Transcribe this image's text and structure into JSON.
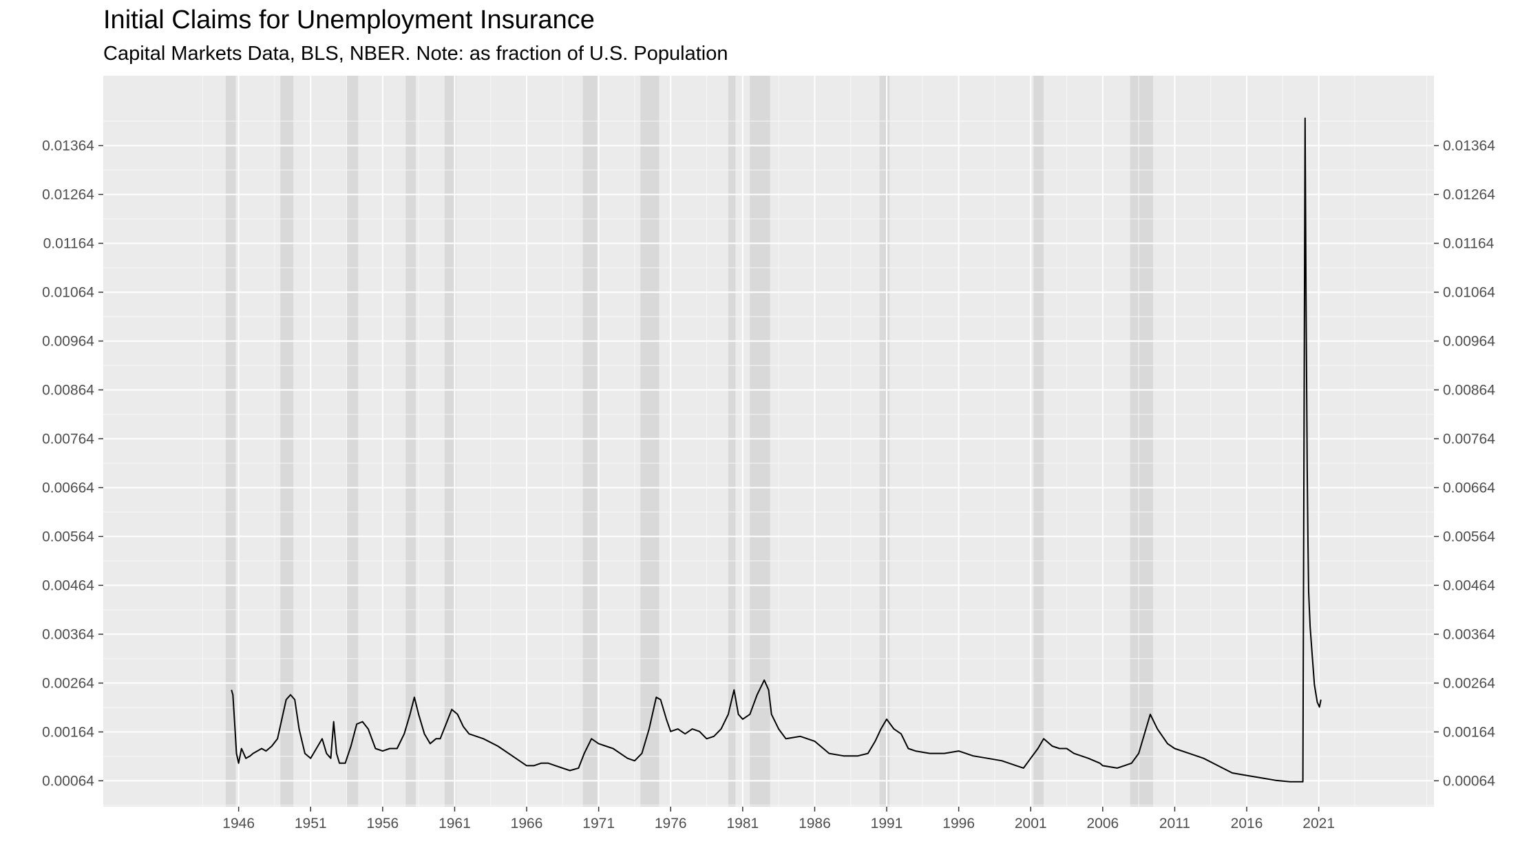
{
  "chart_data": {
    "type": "line",
    "title": "Initial Claims for Unemployment Insurance",
    "subtitle": "Capital Markets Data, BLS, NBER. Note: as fraction of U.S. Population",
    "xlabel": "",
    "ylabel": "",
    "xlim": [
      1936.6,
      2029.0
    ],
    "ylim": [
      0.00011,
      0.01507
    ],
    "x_ticks": [
      1946,
      1951,
      1956,
      1961,
      1966,
      1971,
      1976,
      1981,
      1986,
      1991,
      1996,
      2001,
      2006,
      2011,
      2016,
      2021
    ],
    "y_ticks": [
      0.00064,
      0.00164,
      0.00264,
      0.00364,
      0.00464,
      0.00564,
      0.00664,
      0.00764,
      0.00864,
      0.00964,
      0.01064,
      0.01164,
      0.01264,
      0.01364
    ],
    "y_tick_labels": [
      "0.00064",
      "0.00164",
      "0.00264",
      "0.00364",
      "0.00464",
      "0.00564",
      "0.00664",
      "0.00764",
      "0.00864",
      "0.00964",
      "0.01064",
      "0.01164",
      "0.01264",
      "0.01364"
    ],
    "secondary_y_axis": true,
    "grid": true,
    "recessions": [
      [
        1945.1,
        1945.8
      ],
      [
        1948.9,
        1949.8
      ],
      [
        1953.5,
        1954.3
      ],
      [
        1957.6,
        1958.3
      ],
      [
        1960.3,
        1961.1
      ],
      [
        1969.9,
        1970.9
      ],
      [
        1973.9,
        1975.2
      ],
      [
        1980.0,
        1980.5
      ],
      [
        1981.5,
        1982.9
      ],
      [
        1990.5,
        1991.2
      ],
      [
        2001.2,
        2001.9
      ],
      [
        2007.9,
        2009.5
      ]
    ],
    "series": [
      {
        "color": "#000000",
        "x": [
          1945.5,
          1945.6,
          1945.75,
          1945.85,
          1946.0,
          1946.2,
          1946.5,
          1946.8,
          1947.0,
          1947.3,
          1947.6,
          1947.9,
          1948.3,
          1948.7,
          1949.0,
          1949.3,
          1949.6,
          1949.9,
          1950.2,
          1950.6,
          1951.0,
          1951.4,
          1951.8,
          1952.1,
          1952.4,
          1952.6,
          1952.8,
          1953.0,
          1953.4,
          1953.8,
          1954.2,
          1954.6,
          1955.0,
          1955.5,
          1956.0,
          1956.5,
          1957.0,
          1957.5,
          1957.9,
          1958.2,
          1958.5,
          1958.9,
          1959.3,
          1959.7,
          1960.0,
          1960.4,
          1960.8,
          1961.2,
          1961.6,
          1962.0,
          1963.0,
          1964.0,
          1965.0,
          1966.0,
          1966.5,
          1967.0,
          1967.5,
          1968.0,
          1969.0,
          1969.6,
          1970.0,
          1970.5,
          1971.0,
          1971.5,
          1972.0,
          1972.5,
          1973.0,
          1973.5,
          1974.0,
          1974.5,
          1975.0,
          1975.3,
          1975.7,
          1976.0,
          1976.5,
          1977.0,
          1977.5,
          1978.0,
          1978.5,
          1979.0,
          1979.5,
          1980.0,
          1980.4,
          1980.7,
          1981.0,
          1981.5,
          1982.0,
          1982.5,
          1982.8,
          1983.0,
          1983.5,
          1984.0,
          1985.0,
          1986.0,
          1987.0,
          1988.0,
          1989.0,
          1989.7,
          1990.2,
          1990.6,
          1991.0,
          1991.5,
          1992.0,
          1992.5,
          1993.0,
          1994.0,
          1995.0,
          1996.0,
          1997.0,
          1998.0,
          1999.0,
          2000.0,
          2000.5,
          2001.0,
          2001.5,
          2001.9,
          2002.5,
          2003.0,
          2003.5,
          2004.0,
          2005.0,
          2005.8,
          2006.0,
          2007.0,
          2007.5,
          2008.0,
          2008.5,
          2009.0,
          2009.3,
          2009.8,
          2010.5,
          2011.0,
          2012.0,
          2013.0,
          2014.0,
          2015.0,
          2016.0,
          2017.0,
          2018.0,
          2019.0,
          2019.9,
          2020.05,
          2020.12,
          2020.2,
          2020.25,
          2020.3,
          2020.4,
          2020.55,
          2020.7,
          2020.9,
          2021.05,
          2021.15
        ],
        "values": [
          0.0025,
          0.0024,
          0.0017,
          0.0012,
          0.001,
          0.0013,
          0.0011,
          0.00115,
          0.0012,
          0.00125,
          0.0013,
          0.00125,
          0.00135,
          0.0015,
          0.0019,
          0.0023,
          0.0024,
          0.0023,
          0.0017,
          0.0012,
          0.0011,
          0.0013,
          0.0015,
          0.0012,
          0.0011,
          0.00185,
          0.0012,
          0.001,
          0.001,
          0.00135,
          0.0018,
          0.00185,
          0.0017,
          0.0013,
          0.00125,
          0.0013,
          0.0013,
          0.0016,
          0.002,
          0.00235,
          0.002,
          0.0016,
          0.0014,
          0.0015,
          0.0015,
          0.0018,
          0.0021,
          0.002,
          0.00175,
          0.0016,
          0.0015,
          0.00135,
          0.00115,
          0.00095,
          0.00095,
          0.001,
          0.001,
          0.00095,
          0.00085,
          0.0009,
          0.0012,
          0.0015,
          0.0014,
          0.00135,
          0.0013,
          0.0012,
          0.0011,
          0.00105,
          0.0012,
          0.0017,
          0.00235,
          0.0023,
          0.0019,
          0.00165,
          0.0017,
          0.0016,
          0.0017,
          0.00165,
          0.0015,
          0.00155,
          0.0017,
          0.002,
          0.0025,
          0.002,
          0.0019,
          0.002,
          0.0024,
          0.0027,
          0.0025,
          0.002,
          0.0017,
          0.0015,
          0.00155,
          0.00145,
          0.0012,
          0.00115,
          0.00115,
          0.0012,
          0.00145,
          0.0017,
          0.0019,
          0.0017,
          0.0016,
          0.0013,
          0.00125,
          0.0012,
          0.0012,
          0.00125,
          0.00115,
          0.0011,
          0.00105,
          0.00095,
          0.0009,
          0.0011,
          0.0013,
          0.0015,
          0.00135,
          0.0013,
          0.0013,
          0.0012,
          0.0011,
          0.001,
          0.00095,
          0.0009,
          0.00095,
          0.001,
          0.0012,
          0.0017,
          0.002,
          0.0017,
          0.0014,
          0.0013,
          0.0012,
          0.0011,
          0.00095,
          0.0008,
          0.00075,
          0.0007,
          0.00065,
          0.00062,
          0.00062,
          0.0142,
          0.0105,
          0.007,
          0.0055,
          0.0045,
          0.0038,
          0.0032,
          0.0026,
          0.00225,
          0.00215,
          0.0023
        ]
      }
    ]
  }
}
